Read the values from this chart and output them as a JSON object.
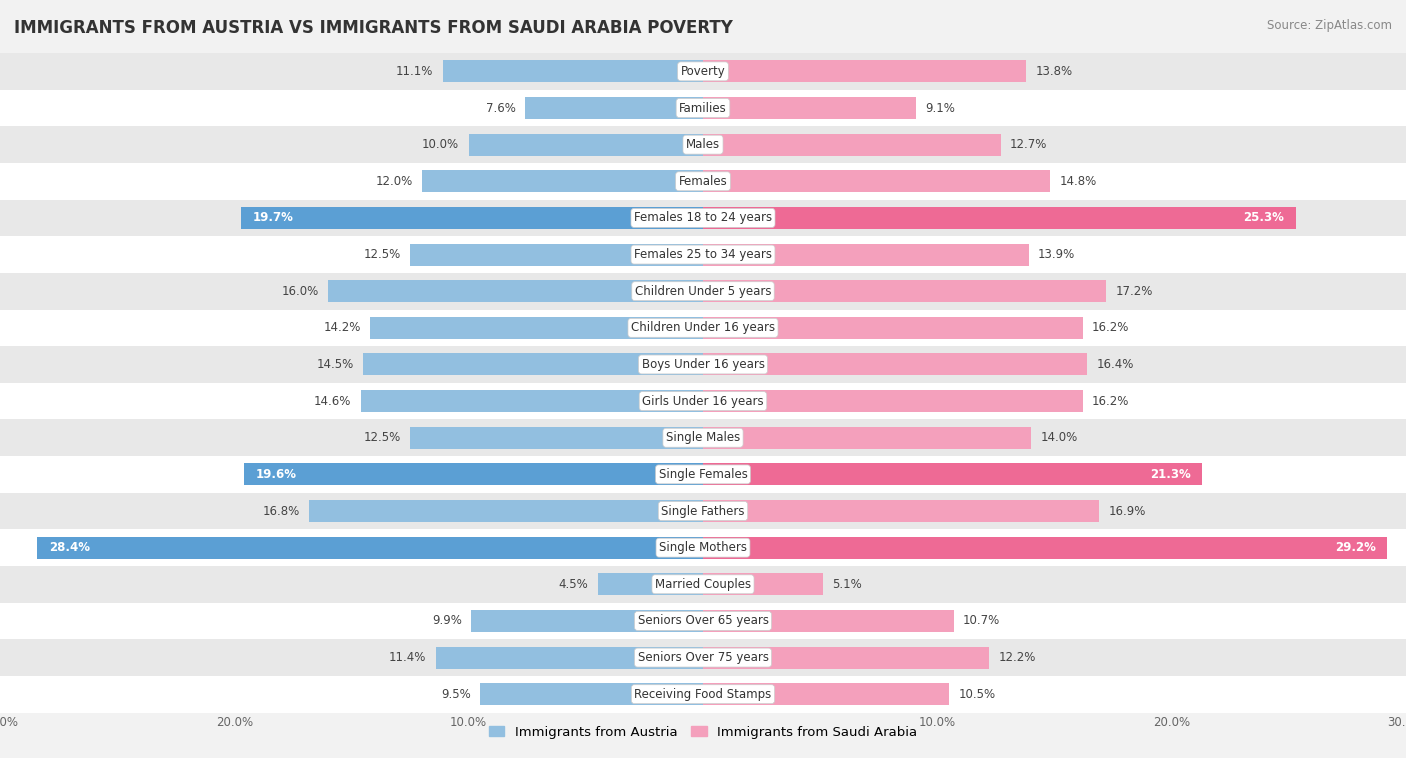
{
  "title": "IMMIGRANTS FROM AUSTRIA VS IMMIGRANTS FROM SAUDI ARABIA POVERTY",
  "source": "Source: ZipAtlas.com",
  "categories": [
    "Poverty",
    "Families",
    "Males",
    "Females",
    "Females 18 to 24 years",
    "Females 25 to 34 years",
    "Children Under 5 years",
    "Children Under 16 years",
    "Boys Under 16 years",
    "Girls Under 16 years",
    "Single Males",
    "Single Females",
    "Single Fathers",
    "Single Mothers",
    "Married Couples",
    "Seniors Over 65 years",
    "Seniors Over 75 years",
    "Receiving Food Stamps"
  ],
  "austria_values": [
    11.1,
    7.6,
    10.0,
    12.0,
    19.7,
    12.5,
    16.0,
    14.2,
    14.5,
    14.6,
    12.5,
    19.6,
    16.8,
    28.4,
    4.5,
    9.9,
    11.4,
    9.5
  ],
  "saudi_values": [
    13.8,
    9.1,
    12.7,
    14.8,
    25.3,
    13.9,
    17.2,
    16.2,
    16.4,
    16.2,
    14.0,
    21.3,
    16.9,
    29.2,
    5.1,
    10.7,
    12.2,
    10.5
  ],
  "austria_color": "#92bfe0",
  "saudi_color": "#f4a0bc",
  "austria_color_highlight": "#5b9fd4",
  "saudi_color_highlight": "#ee6a95",
  "bg_color": "#f2f2f2",
  "row_bg_odd": "#ffffff",
  "row_bg_even": "#e8e8e8",
  "xlim": 30.0,
  "bar_height": 0.6,
  "highlight_rows": [
    4,
    11,
    13
  ],
  "legend_austria": "Immigrants from Austria",
  "legend_saudi": "Immigrants from Saudi Arabia"
}
